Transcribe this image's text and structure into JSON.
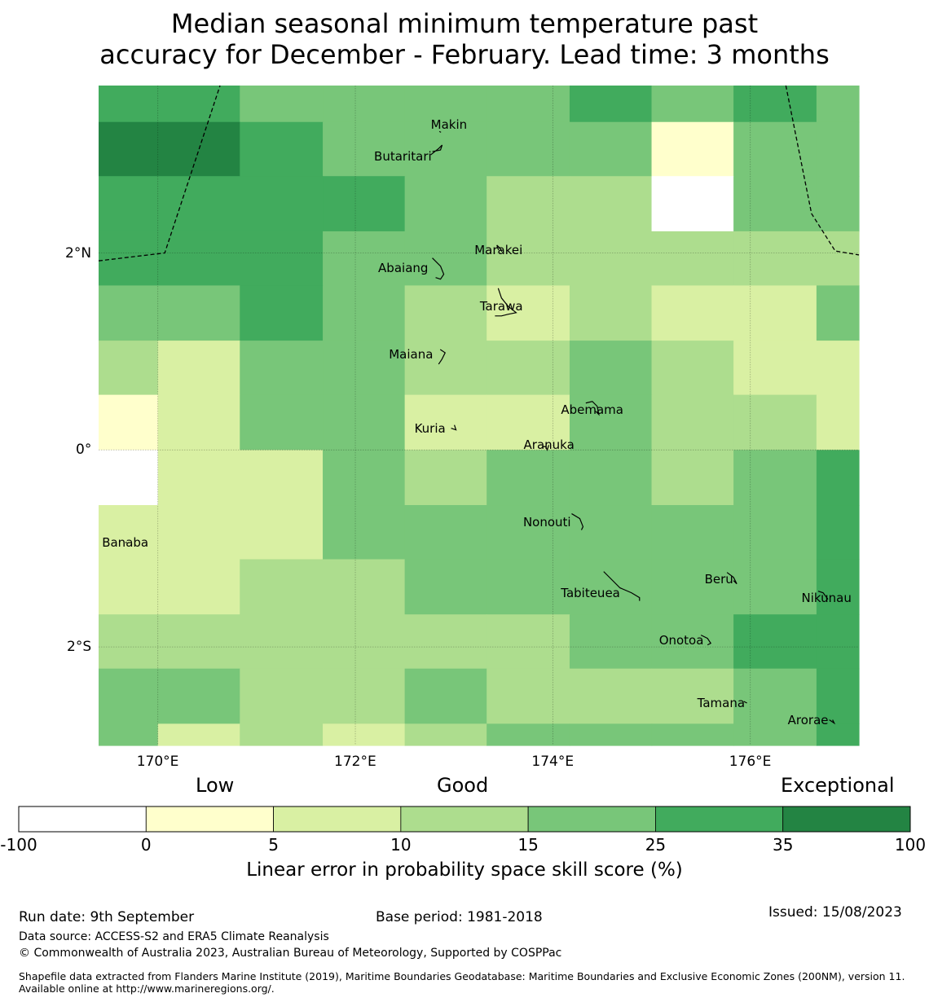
{
  "title": {
    "line1": "Median seasonal minimum temperature past",
    "line2": "accuracy for December - February. Lead time: 3 months"
  },
  "map": {
    "lon_range": [
      169.4,
      177.1
    ],
    "lat_range": [
      -3.0,
      3.7
    ],
    "x_ticks": [
      {
        "value": 170,
        "label": "170°E"
      },
      {
        "value": 172,
        "label": "172°E"
      },
      {
        "value": 174,
        "label": "174°E"
      },
      {
        "value": 176,
        "label": "176°E"
      }
    ],
    "y_ticks": [
      {
        "value": 2,
        "label": "2°N"
      },
      {
        "value": 0,
        "label": "0°"
      },
      {
        "value": -2,
        "label": "2°S"
      }
    ],
    "gridlines": true,
    "col_edges": [
      169.4,
      170.0,
      170.83,
      171.67,
      172.5,
      173.33,
      174.17,
      175.0,
      175.83,
      176.67,
      177.1
    ],
    "row_edges": [
      3.7,
      3.33,
      2.78,
      2.22,
      1.67,
      1.11,
      0.56,
      0.0,
      -0.56,
      -1.11,
      -1.67,
      -2.22,
      -2.78,
      -3.0
    ],
    "grid_classes": [
      [
        5,
        5,
        4,
        4,
        4,
        4,
        5,
        4,
        5,
        4
      ],
      [
        6,
        6,
        5,
        4,
        4,
        4,
        4,
        1,
        4,
        4
      ],
      [
        5,
        5,
        5,
        5,
        4,
        3,
        3,
        0,
        4,
        4
      ],
      [
        5,
        5,
        5,
        4,
        4,
        3,
        3,
        3,
        3,
        3
      ],
      [
        4,
        4,
        5,
        4,
        3,
        2,
        3,
        2,
        2,
        4
      ],
      [
        3,
        2,
        4,
        4,
        3,
        3,
        4,
        3,
        2,
        2
      ],
      [
        1,
        2,
        4,
        4,
        2,
        2,
        4,
        3,
        3,
        2
      ],
      [
        -1,
        2,
        2,
        4,
        3,
        4,
        4,
        3,
        4,
        5
      ],
      [
        2,
        2,
        2,
        4,
        4,
        4,
        4,
        4,
        4,
        5
      ],
      [
        2,
        2,
        3,
        3,
        4,
        4,
        4,
        4,
        4,
        5
      ],
      [
        3,
        3,
        3,
        3,
        3,
        3,
        4,
        4,
        5,
        5
      ],
      [
        4,
        4,
        3,
        3,
        4,
        3,
        3,
        3,
        4,
        5
      ],
      [
        4,
        2,
        3,
        2,
        3,
        4,
        4,
        4,
        4,
        5
      ]
    ],
    "islands": [
      {
        "name": "Makin",
        "lon": 172.95,
        "lat": 3.3
      },
      {
        "name": "Butaritari",
        "lon": 172.78,
        "lat": 2.98
      },
      {
        "name": "Marakei",
        "lon": 173.45,
        "lat": 2.03
      },
      {
        "name": "Abaiang",
        "lon": 172.78,
        "lat": 1.85
      },
      {
        "name": "Tarawa",
        "lon": 173.48,
        "lat": 1.46
      },
      {
        "name": "Maiana",
        "lon": 172.86,
        "lat": 0.97
      },
      {
        "name": "Abemama",
        "lon": 174.4,
        "lat": 0.41
      },
      {
        "name": "Kuria",
        "lon": 172.97,
        "lat": 0.22
      },
      {
        "name": "Aranuka",
        "lon": 173.96,
        "lat": 0.05
      },
      {
        "name": "Banaba",
        "lon": 169.67,
        "lat": -0.94
      },
      {
        "name": "Nonouti",
        "lon": 174.24,
        "lat": -0.73
      },
      {
        "name": "Beru",
        "lon": 175.83,
        "lat": -1.31
      },
      {
        "name": "Tabiteuea",
        "lon": 174.68,
        "lat": -1.45
      },
      {
        "name": "Nikunau",
        "lon": 176.77,
        "lat": -1.5
      },
      {
        "name": "Onotoa",
        "lon": 175.55,
        "lat": -1.93
      },
      {
        "name": "Tamana",
        "lon": 175.95,
        "lat": -2.57
      },
      {
        "name": "Arorae",
        "lon": 176.8,
        "lat": -2.74
      }
    ],
    "boundary_west": [
      [
        169.4,
        1.92
      ],
      [
        170.07,
        2.0
      ],
      [
        170.63,
        3.7
      ]
    ],
    "boundary_east": [
      [
        176.36,
        3.7
      ],
      [
        176.62,
        2.4
      ],
      [
        176.86,
        2.02
      ],
      [
        177.1,
        1.98
      ]
    ]
  },
  "colorbar": {
    "categories": {
      "low": "Low",
      "good": "Good",
      "exceptional": "Exceptional"
    },
    "ticks": [
      "-100",
      "0",
      "5",
      "10",
      "15",
      "25",
      "35",
      "100"
    ],
    "colors": [
      "#ffffff",
      "#ffffcc",
      "#d9f0a3",
      "#addd8e",
      "#78c679",
      "#41ab5d",
      "#238443"
    ],
    "label": "Linear error in probability space skill score (%)"
  },
  "footer": {
    "run_date": "Run date: 9th September",
    "base_period": "Base period: 1981-2018",
    "issued": "Issued: 15/08/2023",
    "data_source": "Data source: ACCESS-S2 and ERA5 Climate Reanalysis",
    "copyright": "© Commonwealth of Australia 2023, Australian Bureau of Meteorology, Supported by COSPPac",
    "shapefile": "Shapefile data extracted from Flanders Marine Institute (2019), Maritime Boundaries Geodatabase: Maritime Boundaries and Exclusive Economic Zones (200NM), version 11. Available online at http://www.marineregions.org/."
  }
}
